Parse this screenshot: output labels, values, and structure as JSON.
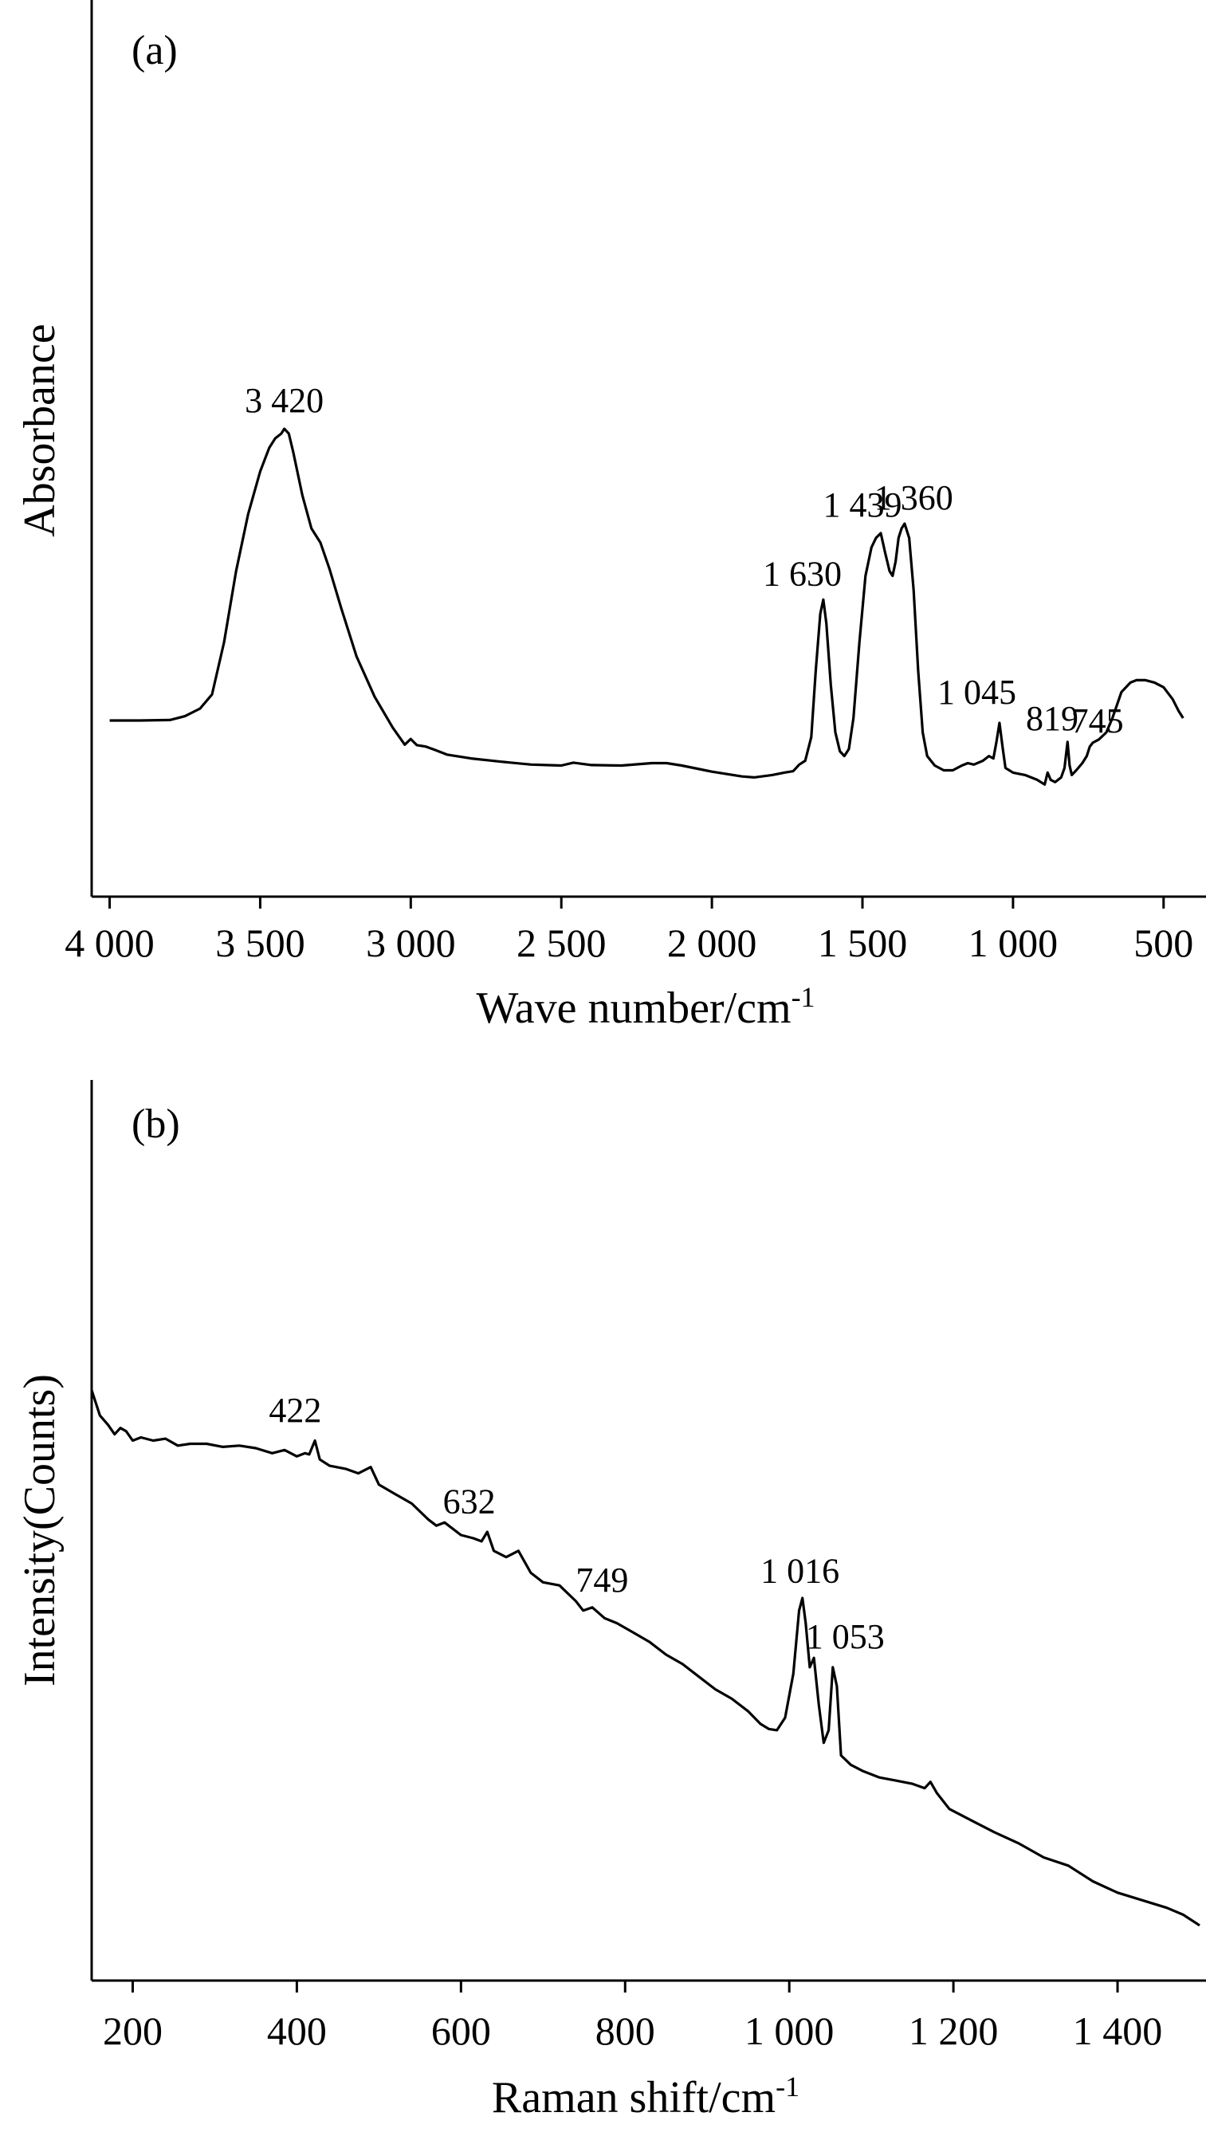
{
  "chart_data": [
    {
      "type": "line",
      "panel_label": "(a)",
      "xlabel": "Wave number/cm",
      "xlabel_sup": "-1",
      "ylabel": "Absorbance",
      "xlim": [
        4020,
        420
      ],
      "x_reversed": true,
      "ylim": [
        0,
        100
      ],
      "x_ticks": [
        {
          "value": 4000,
          "label": "4 000"
        },
        {
          "value": 3500,
          "label": "3 500"
        },
        {
          "value": 3000,
          "label": "3 000"
        },
        {
          "value": 2500,
          "label": "2 500"
        },
        {
          "value": 2000,
          "label": "2 000"
        },
        {
          "value": 1500,
          "label": "1 500"
        },
        {
          "value": 1000,
          "label": "1 000"
        },
        {
          "value": 500,
          "label": "500"
        }
      ],
      "y_ticks_shown": false,
      "grid": false,
      "series": [
        {
          "points": [
            [
              4000,
              19.5
            ],
            [
              3900,
              19.5
            ],
            [
              3800,
              19.6
            ],
            [
              3750,
              20.4
            ],
            [
              3700,
              22.0
            ],
            [
              3660,
              25.0
            ],
            [
              3620,
              36.0
            ],
            [
              3580,
              51.0
            ],
            [
              3540,
              63.0
            ],
            [
              3500,
              72.0
            ],
            [
              3470,
              77.0
            ],
            [
              3450,
              79.0
            ],
            [
              3430,
              80.0
            ],
            [
              3420,
              81.0
            ],
            [
              3405,
              80.0
            ],
            [
              3390,
              76.0
            ],
            [
              3360,
              67.0
            ],
            [
              3330,
              60.0
            ],
            [
              3300,
              57.0
            ],
            [
              3270,
              51.5
            ],
            [
              3230,
              43.0
            ],
            [
              3180,
              33.0
            ],
            [
              3120,
              24.5
            ],
            [
              3060,
              18.0
            ],
            [
              3020,
              14.4
            ],
            [
              3000,
              15.6
            ],
            [
              2980,
              14.3
            ],
            [
              2950,
              14.0
            ],
            [
              2920,
              13.3
            ],
            [
              2880,
              12.3
            ],
            [
              2800,
              11.5
            ],
            [
              2700,
              10.8
            ],
            [
              2600,
              10.2
            ],
            [
              2500,
              10.0
            ],
            [
              2460,
              10.6
            ],
            [
              2400,
              10.1
            ],
            [
              2300,
              10.0
            ],
            [
              2200,
              10.5
            ],
            [
              2150,
              10.5
            ],
            [
              2100,
              10.0
            ],
            [
              2000,
              8.7
            ],
            [
              1900,
              7.7
            ],
            [
              1860,
              7.5
            ],
            [
              1800,
              8.0
            ],
            [
              1760,
              8.5
            ],
            [
              1730,
              8.8
            ],
            [
              1710,
              10.2
            ],
            [
              1690,
              11.0
            ],
            [
              1670,
              16.0
            ],
            [
              1655,
              30.0
            ],
            [
              1640,
              42.0
            ],
            [
              1630,
              45.0
            ],
            [
              1620,
              40.0
            ],
            [
              1605,
              27.0
            ],
            [
              1590,
              17.0
            ],
            [
              1575,
              13.0
            ],
            [
              1560,
              12.0
            ],
            [
              1545,
              13.5
            ],
            [
              1530,
              20.0
            ],
            [
              1510,
              36.0
            ],
            [
              1490,
              50.0
            ],
            [
              1470,
              56.0
            ],
            [
              1455,
              58.0
            ],
            [
              1439,
              59.0
            ],
            [
              1425,
              55.0
            ],
            [
              1410,
              51.0
            ],
            [
              1400,
              50.0
            ],
            [
              1390,
              53.0
            ],
            [
              1380,
              58.0
            ],
            [
              1370,
              60.0
            ],
            [
              1360,
              61.0
            ],
            [
              1345,
              58.0
            ],
            [
              1330,
              47.0
            ],
            [
              1315,
              30.0
            ],
            [
              1300,
              17.0
            ],
            [
              1285,
              12.0
            ],
            [
              1260,
              10.0
            ],
            [
              1230,
              9.0
            ],
            [
              1200,
              9.0
            ],
            [
              1170,
              10.0
            ],
            [
              1150,
              10.5
            ],
            [
              1130,
              10.2
            ],
            [
              1100,
              11.0
            ],
            [
              1080,
              12.0
            ],
            [
              1065,
              11.5
            ],
            [
              1055,
              15.0
            ],
            [
              1045,
              19.0
            ],
            [
              1035,
              14.0
            ],
            [
              1025,
              9.5
            ],
            [
              1000,
              8.5
            ],
            [
              960,
              8.0
            ],
            [
              920,
              7.0
            ],
            [
              895,
              6.0
            ],
            [
              885,
              8.5
            ],
            [
              875,
              7.0
            ],
            [
              860,
              6.5
            ],
            [
              840,
              7.5
            ],
            [
              829,
              9.5
            ],
            [
              819,
              15.0
            ],
            [
              812,
              10.0
            ],
            [
              805,
              8.0
            ],
            [
              790,
              9.0
            ],
            [
              770,
              10.5
            ],
            [
              755,
              12.0
            ],
            [
              745,
              14.0
            ],
            [
              735,
              14.8
            ],
            [
              715,
              15.5
            ],
            [
              690,
              17.0
            ],
            [
              670,
              20.0
            ],
            [
              640,
              25.5
            ],
            [
              610,
              27.5
            ],
            [
              590,
              28.0
            ],
            [
              560,
              28.0
            ],
            [
              530,
              27.5
            ],
            [
              500,
              26.5
            ],
            [
              470,
              24.0
            ],
            [
              450,
              21.5
            ],
            [
              435,
              20.0
            ]
          ]
        }
      ],
      "annotations": [
        {
          "text": "3 420",
          "x": 3420,
          "y": 84.5
        },
        {
          "text": "1 439",
          "x": 1500,
          "y": 62.5
        },
        {
          "text": "1 360",
          "x": 1330,
          "y": 64.0
        },
        {
          "text": "1 630",
          "x": 1700,
          "y": 48.0
        },
        {
          "text": "1 045",
          "x": 1120,
          "y": 23.0
        },
        {
          "text": "819",
          "x": 870,
          "y": 17.5
        },
        {
          "text": "745",
          "x": 720,
          "y": 17.0
        }
      ]
    },
    {
      "type": "line",
      "panel_label": "(b)",
      "xlabel": "Raman shift/cm",
      "xlabel_sup": "-1",
      "ylabel": "Intensity(Counts)",
      "xlim": [
        150,
        1500
      ],
      "x_reversed": false,
      "ylim": [
        0,
        100
      ],
      "x_ticks": [
        {
          "value": 200,
          "label": "200"
        },
        {
          "value": 400,
          "label": "400"
        },
        {
          "value": 600,
          "label": "600"
        },
        {
          "value": 800,
          "label": "800"
        },
        {
          "value": 1000,
          "label": "1 000"
        },
        {
          "value": 1200,
          "label": "1 200"
        },
        {
          "value": 1400,
          "label": "1 400"
        }
      ],
      "y_ticks_shown": false,
      "grid": false,
      "series": [
        {
          "points": [
            [
              150,
              83.0
            ],
            [
              160,
              79.0
            ],
            [
              170,
              77.5
            ],
            [
              178,
              76.0
            ],
            [
              185,
              77.0
            ],
            [
              192,
              76.5
            ],
            [
              200,
              75.0
            ],
            [
              210,
              75.5
            ],
            [
              225,
              75.0
            ],
            [
              240,
              75.3
            ],
            [
              255,
              74.2
            ],
            [
              270,
              74.5
            ],
            [
              290,
              74.5
            ],
            [
              310,
              74.0
            ],
            [
              330,
              74.2
            ],
            [
              350,
              73.8
            ],
            [
              370,
              73.0
            ],
            [
              385,
              73.5
            ],
            [
              400,
              72.5
            ],
            [
              410,
              73.0
            ],
            [
              415,
              72.8
            ],
            [
              422,
              75.0
            ],
            [
              428,
              72.0
            ],
            [
              440,
              71.0
            ],
            [
              460,
              70.5
            ],
            [
              475,
              69.8
            ],
            [
              490,
              70.8
            ],
            [
              500,
              68.0
            ],
            [
              520,
              66.5
            ],
            [
              540,
              65.0
            ],
            [
              560,
              62.5
            ],
            [
              570,
              61.5
            ],
            [
              580,
              62.0
            ],
            [
              600,
              60.0
            ],
            [
              615,
              59.5
            ],
            [
              625,
              59.0
            ],
            [
              632,
              60.5
            ],
            [
              640,
              57.5
            ],
            [
              655,
              56.5
            ],
            [
              670,
              57.5
            ],
            [
              685,
              54.0
            ],
            [
              700,
              52.5
            ],
            [
              720,
              52.0
            ],
            [
              740,
              49.5
            ],
            [
              749,
              48.0
            ],
            [
              760,
              48.5
            ],
            [
              775,
              46.8
            ],
            [
              790,
              46.0
            ],
            [
              810,
              44.5
            ],
            [
              830,
              43.0
            ],
            [
              850,
              41.0
            ],
            [
              870,
              39.5
            ],
            [
              890,
              37.5
            ],
            [
              910,
              35.5
            ],
            [
              930,
              34.0
            ],
            [
              950,
              32.0
            ],
            [
              965,
              30.0
            ],
            [
              975,
              29.2
            ],
            [
              985,
              29.0
            ],
            [
              995,
              31.0
            ],
            [
              1005,
              38.0
            ],
            [
              1012,
              48.0
            ],
            [
              1016,
              50.0
            ],
            [
              1020,
              46.0
            ],
            [
              1025,
              39.0
            ],
            [
              1030,
              40.5
            ],
            [
              1036,
              33.0
            ],
            [
              1042,
              27.0
            ],
            [
              1048,
              29.0
            ],
            [
              1053,
              39.0
            ],
            [
              1058,
              36.0
            ],
            [
              1063,
              25.0
            ],
            [
              1075,
              23.5
            ],
            [
              1090,
              22.5
            ],
            [
              1110,
              21.5
            ],
            [
              1130,
              21.0
            ],
            [
              1150,
              20.5
            ],
            [
              1165,
              19.8
            ],
            [
              1172,
              20.8
            ],
            [
              1180,
              19.0
            ],
            [
              1195,
              16.5
            ],
            [
              1220,
              14.8
            ],
            [
              1250,
              12.8
            ],
            [
              1280,
              11.0
            ],
            [
              1310,
              8.8
            ],
            [
              1340,
              7.5
            ],
            [
              1370,
              5.0
            ],
            [
              1400,
              3.2
            ],
            [
              1430,
              2.0
            ],
            [
              1460,
              0.8
            ],
            [
              1480,
              -0.3
            ],
            [
              1500,
              -2.0
            ]
          ]
        }
      ],
      "annotations": [
        {
          "text": "422",
          "x": 398,
          "y": 78.0
        },
        {
          "text": "632",
          "x": 610,
          "y": 63.5
        },
        {
          "text": "749",
          "x": 772,
          "y": 51.0
        },
        {
          "text": "1 016",
          "x": 1013,
          "y": 52.5
        },
        {
          "text": "1 053",
          "x": 1068,
          "y": 42.0
        }
      ]
    }
  ]
}
